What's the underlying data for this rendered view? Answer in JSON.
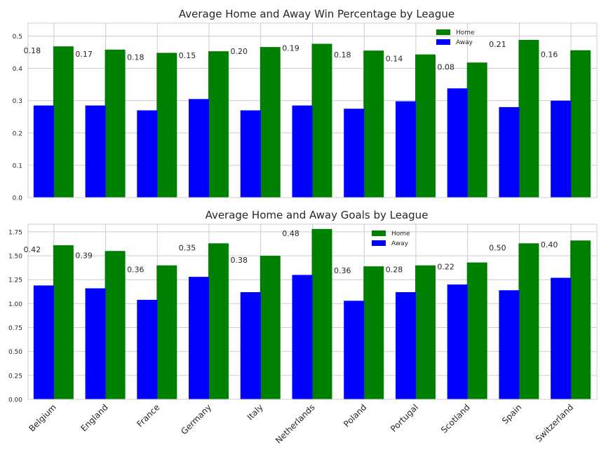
{
  "chart_data": [
    {
      "type": "bar",
      "title": "Average Home and Away Win Percentage by League",
      "xlabel": "",
      "ylabel": "",
      "categories": [
        "Belgium",
        "England",
        "France",
        "Germany",
        "Italy",
        "Netherlands",
        "Poland",
        "Portugal",
        "Scotland",
        "Spain",
        "Switzerland"
      ],
      "series": [
        {
          "name": "Away",
          "color": "#0000ff",
          "values": [
            0.285,
            0.285,
            0.27,
            0.305,
            0.27,
            0.285,
            0.275,
            0.298,
            0.338,
            0.28,
            0.3
          ]
        },
        {
          "name": "Home",
          "color": "#008000",
          "values": [
            0.468,
            0.458,
            0.448,
            0.453,
            0.466,
            0.476,
            0.455,
            0.443,
            0.418,
            0.488,
            0.456
          ]
        }
      ],
      "difference_labels": [
        "0.18",
        "0.17",
        "0.18",
        "0.15",
        "0.20",
        "0.19",
        "0.18",
        "0.14",
        "0.08",
        "0.21",
        "0.16"
      ],
      "ylim": [
        0,
        0.54
      ],
      "yticks": [
        "0.0",
        "0.1",
        "0.2",
        "0.3",
        "0.4",
        "0.5"
      ],
      "ytick_values": [
        0,
        0.1,
        0.2,
        0.3,
        0.4,
        0.5
      ],
      "grid": true,
      "legend_position": "top-right"
    },
    {
      "type": "bar",
      "title": "Average Home and Away Goals by League",
      "xlabel": "",
      "ylabel": "",
      "categories": [
        "Belgium",
        "England",
        "France",
        "Germany",
        "Italy",
        "Netherlands",
        "Poland",
        "Portugal",
        "Scotland",
        "Spain",
        "Switzerland"
      ],
      "series": [
        {
          "name": "Away",
          "color": "#0000ff",
          "values": [
            1.19,
            1.16,
            1.04,
            1.28,
            1.12,
            1.3,
            1.03,
            1.12,
            1.2,
            1.14,
            1.27
          ]
        },
        {
          "name": "Home",
          "color": "#008000",
          "values": [
            1.61,
            1.55,
            1.4,
            1.63,
            1.5,
            1.78,
            1.39,
            1.4,
            1.43,
            1.63,
            1.66
          ]
        }
      ],
      "difference_labels": [
        "0.42",
        "0.39",
        "0.36",
        "0.35",
        "0.38",
        "0.48",
        "0.36",
        "0.28",
        "0.22",
        "0.50",
        "0.40"
      ],
      "ylim": [
        0,
        1.83
      ],
      "yticks": [
        "0.00",
        "0.25",
        "0.50",
        "0.75",
        "1.00",
        "1.25",
        "1.50",
        "1.75"
      ],
      "ytick_values": [
        0,
        0.25,
        0.5,
        0.75,
        1.0,
        1.25,
        1.5,
        1.75
      ],
      "grid": true,
      "legend_position": "top-center"
    }
  ]
}
